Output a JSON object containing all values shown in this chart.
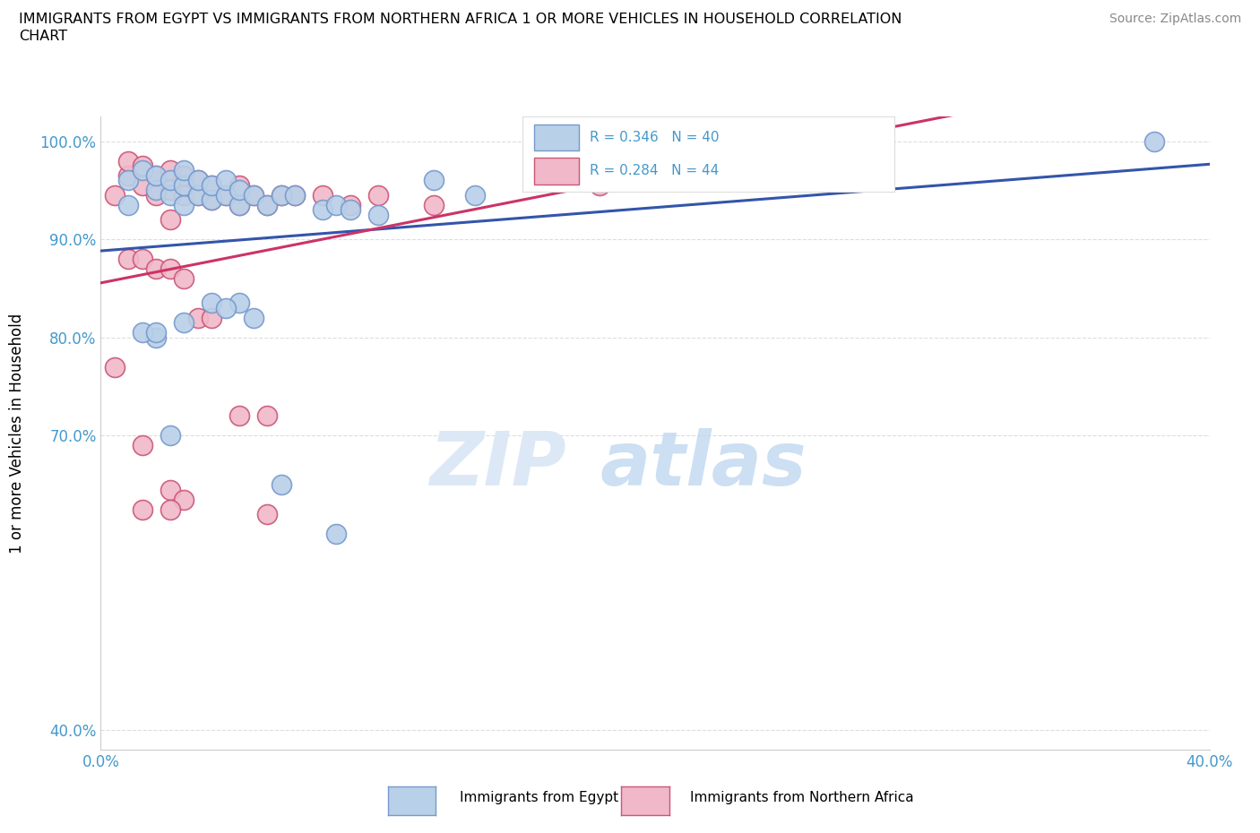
{
  "title_line1": "IMMIGRANTS FROM EGYPT VS IMMIGRANTS FROM NORTHERN AFRICA 1 OR MORE VEHICLES IN HOUSEHOLD CORRELATION",
  "title_line2": "CHART",
  "source": "Source: ZipAtlas.com",
  "ylabel": "1 or more Vehicles in Household",
  "R1": 0.346,
  "N1": 40,
  "R2": 0.284,
  "N2": 44,
  "color_egypt_fill": "#b8d0e8",
  "color_egypt_edge": "#7799cc",
  "color_north_africa_fill": "#f0b8c8",
  "color_north_africa_edge": "#cc5577",
  "color_line_egypt": "#3355aa",
  "color_line_north_africa": "#cc3366",
  "color_axis_text": "#4499cc",
  "color_grid": "#dddddd",
  "legend_label1": "Immigrants from Egypt",
  "legend_label2": "Immigrants from Northern Africa",
  "xmin": 0.0,
  "xmax": 0.4,
  "ymin": 0.38,
  "ymax": 1.025,
  "yticks": [
    0.4,
    0.7,
    0.8,
    0.9,
    1.0
  ],
  "ytick_labels": [
    "40.0%",
    "70.0%",
    "80.0%",
    "90.0%",
    "100.0%"
  ],
  "xticks": [
    0.0,
    0.05,
    0.1,
    0.15,
    0.2,
    0.25,
    0.3,
    0.35,
    0.4
  ],
  "xtick_labels": [
    "0.0%",
    "",
    "",
    "",
    "",
    "",
    "",
    "",
    "40.0%"
  ],
  "egypt_x": [
    0.01,
    0.01,
    0.015,
    0.02,
    0.02,
    0.025,
    0.025,
    0.03,
    0.03,
    0.03,
    0.035,
    0.035,
    0.04,
    0.04,
    0.045,
    0.045,
    0.05,
    0.05,
    0.055,
    0.06,
    0.065,
    0.07,
    0.08,
    0.085,
    0.09,
    0.1,
    0.12,
    0.135,
    0.38,
    0.02,
    0.015,
    0.02,
    0.025,
    0.03,
    0.04,
    0.05,
    0.065,
    0.085,
    0.055,
    0.045
  ],
  "egypt_y": [
    0.935,
    0.96,
    0.97,
    0.95,
    0.965,
    0.945,
    0.96,
    0.935,
    0.955,
    0.97,
    0.945,
    0.96,
    0.94,
    0.955,
    0.945,
    0.96,
    0.935,
    0.95,
    0.945,
    0.935,
    0.945,
    0.945,
    0.93,
    0.935,
    0.93,
    0.925,
    0.96,
    0.945,
    1.0,
    0.8,
    0.805,
    0.805,
    0.7,
    0.815,
    0.835,
    0.835,
    0.65,
    0.6,
    0.82,
    0.83
  ],
  "north_africa_x": [
    0.005,
    0.01,
    0.01,
    0.015,
    0.015,
    0.02,
    0.02,
    0.025,
    0.025,
    0.03,
    0.03,
    0.035,
    0.035,
    0.04,
    0.04,
    0.045,
    0.05,
    0.05,
    0.055,
    0.06,
    0.065,
    0.07,
    0.08,
    0.09,
    0.1,
    0.12,
    0.18,
    0.01,
    0.015,
    0.02,
    0.025,
    0.03,
    0.035,
    0.04,
    0.05,
    0.06,
    0.025,
    0.005,
    0.015,
    0.025,
    0.03,
    0.06,
    0.015,
    0.025
  ],
  "north_africa_y": [
    0.945,
    0.965,
    0.98,
    0.955,
    0.975,
    0.945,
    0.965,
    0.95,
    0.97,
    0.945,
    0.965,
    0.945,
    0.96,
    0.94,
    0.955,
    0.945,
    0.935,
    0.955,
    0.945,
    0.935,
    0.945,
    0.945,
    0.945,
    0.935,
    0.945,
    0.935,
    0.955,
    0.88,
    0.88,
    0.87,
    0.87,
    0.86,
    0.82,
    0.82,
    0.72,
    0.72,
    0.92,
    0.77,
    0.69,
    0.645,
    0.635,
    0.62,
    0.625,
    0.625
  ]
}
